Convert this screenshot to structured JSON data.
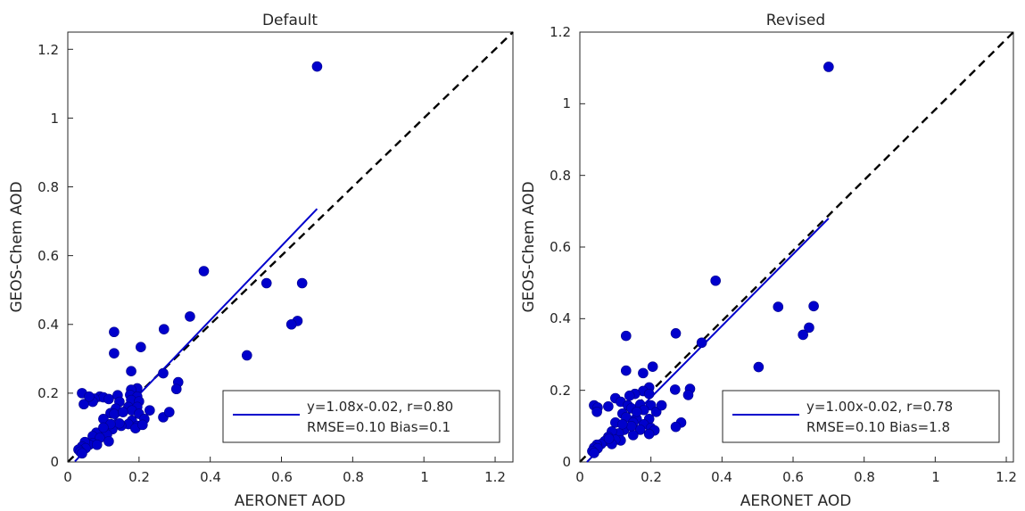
{
  "chart_data": [
    {
      "type": "scatter",
      "title": "Default",
      "xlabel": "AERONET AOD",
      "ylabel": "GEOS-Chem AOD",
      "xlim": [
        0,
        1.25
      ],
      "ylim": [
        0,
        1.25
      ],
      "xticks": [
        "0",
        "0.2",
        "0.4",
        "0.6",
        "0.8",
        "1",
        "1.2"
      ],
      "yticks": [
        "0",
        "0.2",
        "0.4",
        "0.6",
        "0.8",
        "1",
        "1.2"
      ],
      "grid": false,
      "legend_position": "bottom-right",
      "legend": {
        "line1": "y=1.08x-0.02, r=0.80",
        "line2": "RMSE=0.10 Bias=0.1"
      },
      "fit": {
        "slope": 1.08,
        "intercept": -0.02,
        "x_range": [
          0.02,
          0.7
        ]
      },
      "points": [
        [
          0.7,
          1.15
        ],
        [
          0.382,
          0.555
        ],
        [
          0.558,
          0.52
        ],
        [
          0.658,
          0.52
        ],
        [
          0.343,
          0.423
        ],
        [
          0.645,
          0.41
        ],
        [
          0.628,
          0.4
        ],
        [
          0.27,
          0.386
        ],
        [
          0.13,
          0.378
        ],
        [
          0.205,
          0.334
        ],
        [
          0.13,
          0.316
        ],
        [
          0.503,
          0.31
        ],
        [
          0.268,
          0.258
        ],
        [
          0.178,
          0.264
        ],
        [
          0.31,
          0.232
        ],
        [
          0.195,
          0.214
        ],
        [
          0.178,
          0.21
        ],
        [
          0.305,
          0.212
        ],
        [
          0.04,
          0.2
        ],
        [
          0.09,
          0.19
        ],
        [
          0.1,
          0.188
        ],
        [
          0.115,
          0.183
        ],
        [
          0.14,
          0.194
        ],
        [
          0.175,
          0.195
        ],
        [
          0.195,
          0.19
        ],
        [
          0.075,
          0.184
        ],
        [
          0.07,
          0.175
        ],
        [
          0.045,
          0.168
        ],
        [
          0.06,
          0.19
        ],
        [
          0.145,
          0.175
        ],
        [
          0.178,
          0.18
        ],
        [
          0.2,
          0.176
        ],
        [
          0.17,
          0.16
        ],
        [
          0.195,
          0.16
        ],
        [
          0.135,
          0.155
        ],
        [
          0.18,
          0.15
        ],
        [
          0.12,
          0.142
        ],
        [
          0.1,
          0.125
        ],
        [
          0.13,
          0.14
        ],
        [
          0.155,
          0.145
        ],
        [
          0.23,
          0.15
        ],
        [
          0.268,
          0.13
        ],
        [
          0.285,
          0.145
        ],
        [
          0.2,
          0.14
        ],
        [
          0.215,
          0.125
        ],
        [
          0.18,
          0.12
        ],
        [
          0.17,
          0.11
        ],
        [
          0.195,
          0.105
        ],
        [
          0.15,
          0.105
        ],
        [
          0.19,
          0.098
        ],
        [
          0.125,
          0.095
        ],
        [
          0.1,
          0.09
        ],
        [
          0.08,
          0.085
        ],
        [
          0.11,
          0.08
        ],
        [
          0.07,
          0.075
        ],
        [
          0.09,
          0.07
        ],
        [
          0.115,
          0.06
        ],
        [
          0.07,
          0.055
        ],
        [
          0.06,
          0.05
        ],
        [
          0.048,
          0.058
        ],
        [
          0.082,
          0.05
        ],
        [
          0.04,
          0.045
        ],
        [
          0.05,
          0.04
        ],
        [
          0.03,
          0.036
        ],
        [
          0.035,
          0.03
        ],
        [
          0.04,
          0.025
        ],
        [
          0.145,
          0.112
        ],
        [
          0.12,
          0.11
        ],
        [
          0.1,
          0.1
        ],
        [
          0.21,
          0.108
        ]
      ]
    },
    {
      "type": "scatter",
      "title": "Revised",
      "xlabel": "AERONET AOD",
      "ylabel": "GEOS-Chem AOD",
      "xlim": [
        0,
        1.22
      ],
      "ylim": [
        0,
        1.2
      ],
      "xticks": [
        "0",
        "0.2",
        "0.4",
        "0.6",
        "0.8",
        "1",
        "1.2"
      ],
      "yticks": [
        "0",
        "0.2",
        "0.4",
        "0.6",
        "0.8",
        "1",
        "1.2"
      ],
      "grid": false,
      "legend_position": "bottom-right",
      "legend": {
        "line1": "y=1.00x-0.02, r=0.78",
        "line2": "RMSE=0.10 Bias=1.8"
      },
      "fit": {
        "slope": 1.0,
        "intercept": -0.02,
        "x_range": [
          0.02,
          0.7
        ]
      },
      "points": [
        [
          0.7,
          1.103
        ],
        [
          0.382,
          0.506
        ],
        [
          0.558,
          0.433
        ],
        [
          0.658,
          0.435
        ],
        [
          0.343,
          0.333
        ],
        [
          0.645,
          0.375
        ],
        [
          0.628,
          0.355
        ],
        [
          0.27,
          0.359
        ],
        [
          0.13,
          0.352
        ],
        [
          0.205,
          0.266
        ],
        [
          0.13,
          0.255
        ],
        [
          0.503,
          0.265
        ],
        [
          0.178,
          0.248
        ],
        [
          0.31,
          0.204
        ],
        [
          0.305,
          0.187
        ],
        [
          0.268,
          0.202
        ],
        [
          0.195,
          0.208
        ],
        [
          0.178,
          0.198
        ],
        [
          0.195,
          0.19
        ],
        [
          0.155,
          0.19
        ],
        [
          0.14,
          0.185
        ],
        [
          0.1,
          0.178
        ],
        [
          0.115,
          0.168
        ],
        [
          0.08,
          0.155
        ],
        [
          0.04,
          0.158
        ],
        [
          0.05,
          0.152
        ],
        [
          0.048,
          0.14
        ],
        [
          0.135,
          0.158
        ],
        [
          0.145,
          0.15
        ],
        [
          0.17,
          0.16
        ],
        [
          0.2,
          0.158
        ],
        [
          0.18,
          0.145
        ],
        [
          0.215,
          0.14
        ],
        [
          0.23,
          0.158
        ],
        [
          0.12,
          0.135
        ],
        [
          0.13,
          0.125
        ],
        [
          0.16,
          0.12
        ],
        [
          0.195,
          0.12
        ],
        [
          0.15,
          0.11
        ],
        [
          0.1,
          0.11
        ],
        [
          0.285,
          0.11
        ],
        [
          0.27,
          0.098
        ],
        [
          0.18,
          0.105
        ],
        [
          0.2,
          0.095
        ],
        [
          0.17,
          0.09
        ],
        [
          0.21,
          0.088
        ],
        [
          0.195,
          0.078
        ],
        [
          0.15,
          0.075
        ],
        [
          0.125,
          0.09
        ],
        [
          0.11,
          0.08
        ],
        [
          0.09,
          0.085
        ],
        [
          0.08,
          0.07
        ],
        [
          0.115,
          0.06
        ],
        [
          0.1,
          0.062
        ],
        [
          0.07,
          0.058
        ],
        [
          0.06,
          0.05
        ],
        [
          0.09,
          0.05
        ],
        [
          0.048,
          0.048
        ],
        [
          0.04,
          0.04
        ],
        [
          0.05,
          0.038
        ],
        [
          0.035,
          0.03
        ],
        [
          0.04,
          0.025
        ],
        [
          0.145,
          0.1
        ],
        [
          0.12,
          0.105
        ],
        [
          0.082,
          0.065
        ],
        [
          0.16,
          0.14
        ]
      ]
    }
  ]
}
